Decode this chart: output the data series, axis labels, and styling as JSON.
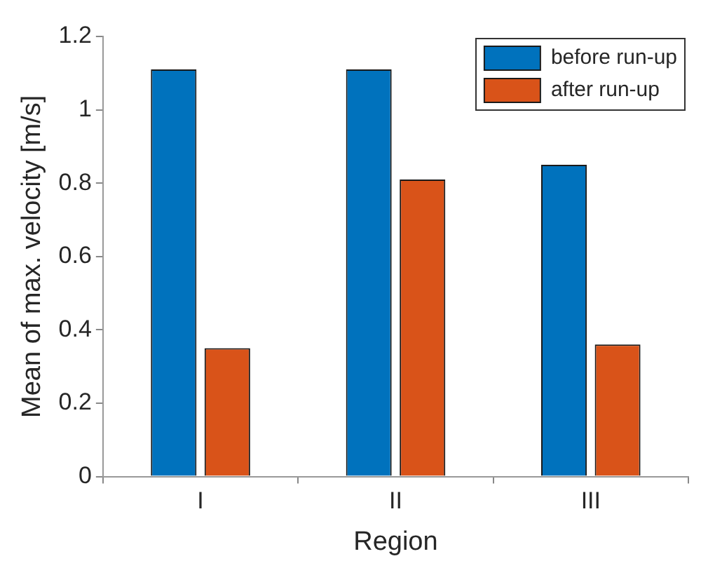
{
  "chart_data": {
    "type": "bar",
    "xlabel": "Region",
    "ylabel": "Mean of max. velocity [m/s]",
    "categories": [
      "I",
      "II",
      "III"
    ],
    "series": [
      {
        "name": "before run-up",
        "color": "#0072bd",
        "values": [
          1.11,
          1.11,
          0.85
        ]
      },
      {
        "name": "after run-up",
        "color": "#d95319",
        "values": [
          0.35,
          0.81,
          0.36
        ]
      }
    ],
    "ylim": [
      0,
      1.2
    ],
    "yticks": [
      0,
      0.2,
      0.4,
      0.6,
      0.8,
      1,
      1.2
    ],
    "grid": false,
    "legend": "top right"
  }
}
